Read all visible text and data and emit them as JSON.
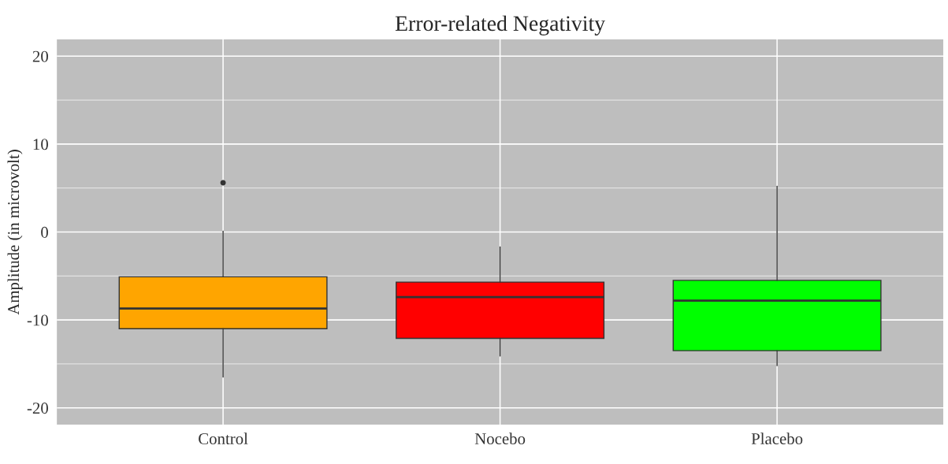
{
  "chart_data": {
    "type": "box",
    "title": "Error-related Negativity",
    "ylabel": "Amplitude (in microvolt)",
    "categories": [
      "Control",
      "Nocebo",
      "Placebo"
    ],
    "colors": [
      "#ffa500",
      "#ff0000",
      "#00ff00"
    ],
    "boxes": [
      {
        "low": -16.5,
        "q1": -11.0,
        "median": -8.7,
        "q3": -5.1,
        "high": 0.1,
        "outliers": [
          5.6
        ]
      },
      {
        "low": -14.1,
        "q1": -12.1,
        "median": -7.4,
        "q3": -5.7,
        "high": -1.7
      },
      {
        "low": -15.2,
        "q1": -13.5,
        "median": -7.8,
        "q3": -5.5,
        "high": 5.2
      }
    ],
    "ylim": [
      -21.9,
      21.9
    ],
    "yticks": [
      -20,
      -10,
      0,
      10,
      20
    ],
    "grid": true,
    "legend": false
  }
}
